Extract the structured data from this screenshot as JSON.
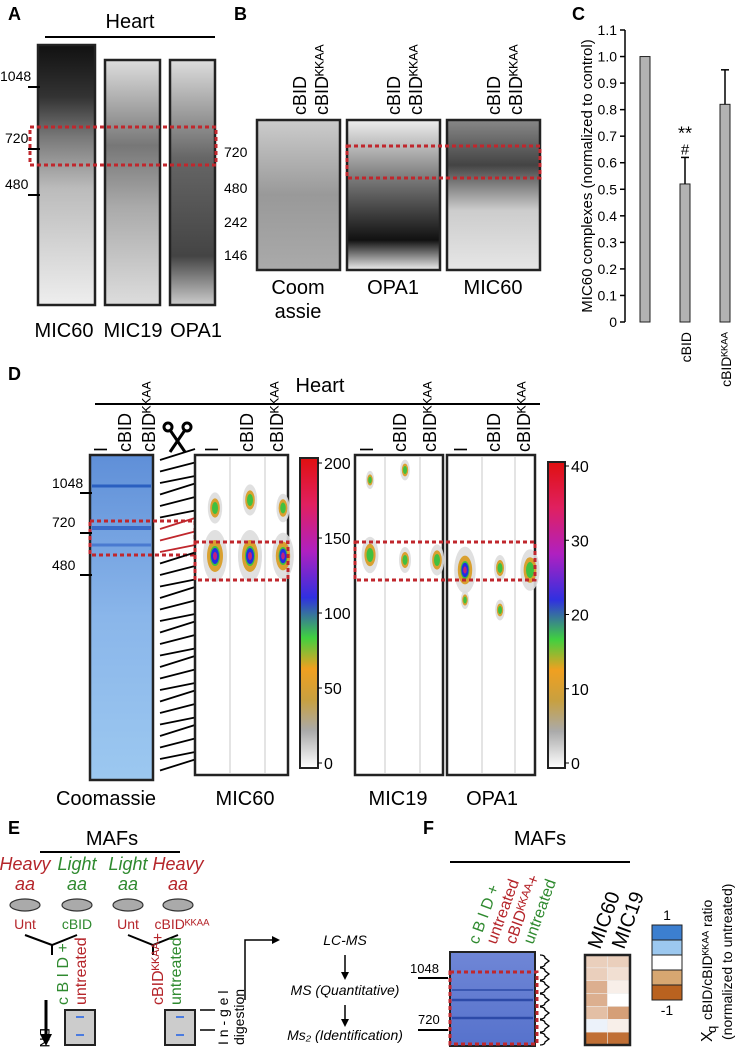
{
  "A": {
    "letter": "A",
    "title": "Heart",
    "markers": [
      1048,
      720,
      480
    ],
    "lanes": [
      "MIC60",
      "MIC19",
      "OPA1"
    ]
  },
  "B": {
    "letter": "B",
    "markers": [
      720,
      480,
      242,
      146
    ],
    "lanes": [
      "cBID",
      "cBIDᴷᴷᴬᴬ"
    ],
    "coomassie_lines": [
      "Coom",
      "assie"
    ],
    "blots": [
      "OPA1",
      "MIC60"
    ]
  },
  "C": {
    "letter": "C"
  },
  "chart_data": {
    "type": "bar",
    "y_label": "MIC60 complexes (normalized to control)",
    "categories": [
      null,
      "cBID",
      "cBIDᴷᴷᴬᴬ"
    ],
    "values": [
      1.0,
      0.52,
      0.82
    ],
    "errors": [
      null,
      0.1,
      0.13
    ],
    "annotations": [
      "**",
      "#"
    ],
    "color": "#b3b3b3",
    "ylim": [
      0,
      1.1
    ],
    "yticks": [
      0,
      0.1,
      0.2,
      0.3,
      0.4,
      0.5,
      0.6,
      0.7,
      0.8,
      0.9,
      {
        "value": 1,
        "label": "1.0"
      },
      1.1
    ]
  },
  "D": {
    "letter": "D",
    "title": "Heart",
    "lanes": [
      "I",
      "cBID",
      "cBIDᴷᴷᴬᴬ"
    ],
    "markers": [
      1048,
      720,
      480
    ],
    "gel": "Coomassie",
    "blots": [
      "MIC60",
      "MIC19",
      "OPA1"
    ],
    "scale1": [
      0,
      50,
      100,
      150,
      200
    ],
    "scale2": [
      0,
      10,
      20,
      30,
      40
    ]
  },
  "E": {
    "letter": "E",
    "title": "MAFs",
    "isotopes": [
      "Heavy",
      "Light",
      "Light",
      "Heavy"
    ],
    "aa": "aa",
    "dishes": [
      "Unt",
      "cBID",
      "Unt",
      "cBIDᴷᴷᴬᴬ"
    ],
    "mix1": [
      "c B I D +",
      "untreated"
    ],
    "mix2": [
      "cBIDᴷᴷᴬᴬ+",
      "untreated"
    ],
    "bnge": "BNGE",
    "digestion": [
      "I n - g e l",
      "digestion"
    ],
    "steps": [
      "LC-MS",
      "MS (Quantitative)",
      "Ms₂ (Identification)"
    ]
  },
  "F": {
    "letter": "F",
    "title": "MAFs",
    "lanes": [
      "c B I D +",
      "untreated",
      "cBIDᴷᴷᴬᴬ+",
      "untreated"
    ],
    "markers": [
      1048,
      720
    ],
    "heatmap": {
      "columns": [
        "MIC60",
        "MIC19"
      ],
      "values": [
        [
          -0.3,
          -0.3,
          -0.5,
          -0.5,
          -0.4,
          0.1,
          -0.9
        ],
        [
          -0.3,
          -0.2,
          -0.1,
          0,
          -0.6,
          -0.1,
          -0.9
        ]
      ],
      "range": [
        -1,
        1
      ]
    },
    "scale_label": [
      "X",
      "q",
      "cBID/cBIDᴷᴷᴬᴬ ratio",
      "(normalized to untreated)"
    ]
  }
}
